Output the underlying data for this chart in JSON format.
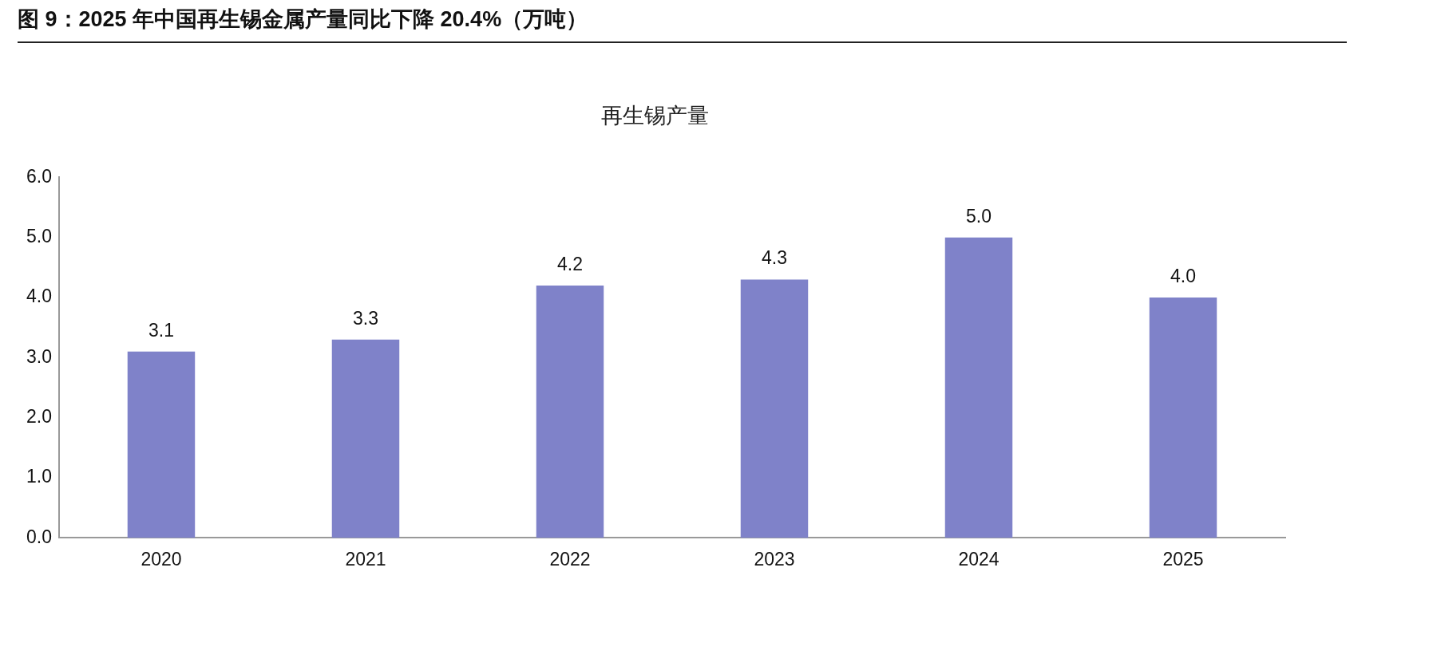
{
  "chart_data": {
    "type": "bar",
    "title": "图 9：2025 年中国再生锡金属产量同比下降 20.4%（万吨）",
    "subtitle": "再生锡产量",
    "categories": [
      "2020",
      "2021",
      "2022",
      "2023",
      "2024",
      "2025"
    ],
    "values": [
      3.1,
      3.3,
      4.2,
      4.3,
      5.0,
      4.0
    ],
    "value_labels": [
      "3.1",
      "3.3",
      "4.2",
      "4.3",
      "5.0",
      "4.0"
    ],
    "color": "#7f82c9",
    "ylim": [
      0,
      6
    ],
    "yticks": [
      {
        "value": 0,
        "label": "0.0"
      },
      {
        "value": 1,
        "label": "1.0"
      },
      {
        "value": 2,
        "label": "2.0"
      },
      {
        "value": 3,
        "label": "3.0"
      },
      {
        "value": 4,
        "label": "4.0"
      },
      {
        "value": 5,
        "label": "5.0"
      },
      {
        "value": 6,
        "label": "6.0"
      }
    ],
    "grid": false,
    "legend": false
  }
}
